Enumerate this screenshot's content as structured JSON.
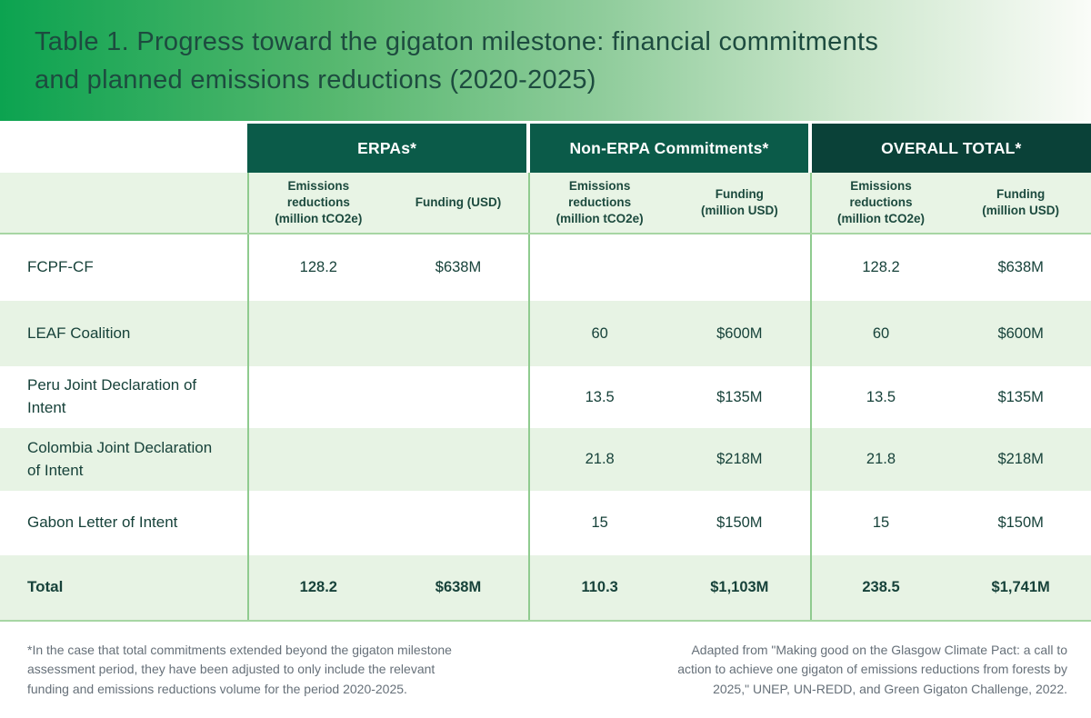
{
  "banner": {
    "title": "Table 1. Progress toward the gigaton milestone: financial commitments\nand planned emissions reductions (2020-2025)"
  },
  "header_groups": [
    {
      "label": "ERPAs*"
    },
    {
      "label": "Non-ERPA Commitments*"
    },
    {
      "label": "OVERALL TOTAL*"
    }
  ],
  "subheaders": [
    "Emissions\nreductions\n(million tCO2e)",
    "Funding (USD)",
    "Emissions\nreductions\n(million tCO2e)",
    "Funding\n(million USD)",
    "Emissions\nreductions\n(million tCO2e)",
    "Funding\n(million USD)"
  ],
  "rows": [
    {
      "label": "FCPF-CF",
      "cells": [
        "128.2",
        "$638M",
        "",
        "",
        "128.2",
        "$638M"
      ]
    },
    {
      "label": "LEAF Coalition",
      "cells": [
        "",
        "",
        "60",
        "$600M",
        "60",
        "$600M"
      ]
    },
    {
      "label": "Peru Joint Declaration of Intent",
      "cells": [
        "",
        "",
        "13.5",
        "$135M",
        "13.5",
        "$135M"
      ]
    },
    {
      "label": "Colombia Joint Declaration of Intent",
      "cells": [
        "",
        "",
        "21.8",
        "$218M",
        "21.8",
        "$218M"
      ]
    },
    {
      "label": "Gabon Letter of Intent",
      "cells": [
        "",
        "",
        "15",
        "$150M",
        "15",
        "$150M"
      ]
    },
    {
      "label": "Total",
      "cells": [
        "128.2",
        "$638M",
        "110.3",
        "$1,103M",
        "238.5",
        "$1,741M"
      ]
    }
  ],
  "footnotes": {
    "left": "*In the case that total commitments extended beyond the gigaton milestone\nassessment period, they have been adjusted to only include the relevant\nfunding and emissions reductions volume for the period 2020-2025.",
    "right": "Adapted from \"Making good on the Glasgow Climate Pact: a call to\naction to achieve one gigaton of emissions reductions from forests by\n2025,\" UNEP, UN-REDD, and Green Gigaton Challenge, 2022."
  },
  "colors": {
    "banner_gradient_start": "#0ca350",
    "banner_gradient_end": "#fafcf8",
    "group_header_bg": "#0b5b49",
    "overall_header_bg": "#0a4138",
    "light_row_bg": "#e7f3e4",
    "border_green": "#8fcb8f",
    "title_text": "#1d4b3f",
    "cell_text": "#17423a",
    "footnote_text": "#667079"
  },
  "chart_data": {
    "type": "table",
    "title": "Table 1. Progress toward the gigaton milestone: financial commitments and planned emissions reductions (2020-2025)",
    "column_groups": [
      "ERPAs*",
      "Non-ERPA Commitments*",
      "OVERALL TOTAL*"
    ],
    "columns": [
      "ERPAs* - Emissions reductions (million tCO2e)",
      "ERPAs* - Funding (USD)",
      "Non-ERPA Commitments* - Emissions reductions (million tCO2e)",
      "Non-ERPA Commitments* - Funding (million USD)",
      "OVERALL TOTAL* - Emissions reductions (million tCO2e)",
      "OVERALL TOTAL* - Funding (million USD)"
    ],
    "rows": [
      {
        "label": "FCPF-CF",
        "values": [
          128.2,
          "$638M",
          null,
          null,
          128.2,
          "$638M"
        ]
      },
      {
        "label": "LEAF Coalition",
        "values": [
          null,
          null,
          60,
          "$600M",
          60,
          "$600M"
        ]
      },
      {
        "label": "Peru Joint Declaration of Intent",
        "values": [
          null,
          null,
          13.5,
          "$135M",
          13.5,
          "$135M"
        ]
      },
      {
        "label": "Colombia Joint Declaration of Intent",
        "values": [
          null,
          null,
          21.8,
          "$218M",
          21.8,
          "$218M"
        ]
      },
      {
        "label": "Gabon Letter of Intent",
        "values": [
          null,
          null,
          15,
          "$150M",
          15,
          "$150M"
        ]
      },
      {
        "label": "Total",
        "values": [
          128.2,
          "$638M",
          110.3,
          "$1,103M",
          238.5,
          "$1,741M"
        ]
      }
    ],
    "footnote": "*In the case that total commitments extended beyond the gigaton milestone assessment period, they have been adjusted to only include the relevant funding and emissions reductions volume for the period 2020-2025.",
    "source": "Adapted from \"Making good on the Glasgow Climate Pact: a call to action to achieve one gigaton of emissions reductions from forests by 2025,\" UNEP, UN-REDD, and Green Gigaton Challenge, 2022."
  }
}
